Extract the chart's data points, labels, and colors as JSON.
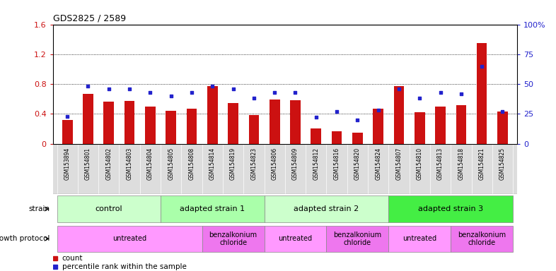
{
  "title": "GDS2825 / 2589",
  "samples": [
    "GSM153894",
    "GSM154801",
    "GSM154802",
    "GSM154803",
    "GSM154804",
    "GSM154805",
    "GSM154808",
    "GSM154814",
    "GSM154819",
    "GSM154823",
    "GSM154806",
    "GSM154809",
    "GSM154812",
    "GSM154816",
    "GSM154820",
    "GSM154824",
    "GSM154807",
    "GSM154810",
    "GSM154813",
    "GSM154818",
    "GSM154821",
    "GSM154825"
  ],
  "red_values": [
    0.32,
    0.67,
    0.56,
    0.57,
    0.5,
    0.44,
    0.47,
    0.77,
    0.54,
    0.38,
    0.59,
    0.58,
    0.2,
    0.17,
    0.15,
    0.47,
    0.77,
    0.42,
    0.5,
    0.52,
    1.35,
    0.43
  ],
  "blue_values": [
    23,
    48,
    46,
    46,
    43,
    40,
    43,
    48,
    46,
    38,
    43,
    43,
    22,
    27,
    20,
    28,
    46,
    38,
    43,
    42,
    65,
    27
  ],
  "left_ylim": [
    0,
    1.6
  ],
  "right_ylim": [
    0,
    100
  ],
  "left_yticks": [
    0,
    0.4,
    0.8,
    1.2,
    1.6
  ],
  "right_yticks": [
    0,
    25,
    50,
    75,
    100
  ],
  "right_yticklabels": [
    "0",
    "25",
    "50",
    "75",
    "100%"
  ],
  "red_color": "#cc1111",
  "blue_color": "#2222cc",
  "strain_groups": [
    {
      "label": "control",
      "start": 0,
      "end": 5,
      "color": "#ccffcc"
    },
    {
      "label": "adapted strain 1",
      "start": 5,
      "end": 10,
      "color": "#aaffaa"
    },
    {
      "label": "adapted strain 2",
      "start": 10,
      "end": 16,
      "color": "#ccffcc"
    },
    {
      "label": "adapted strain 3",
      "start": 16,
      "end": 22,
      "color": "#44ee44"
    }
  ],
  "protocol_groups": [
    {
      "label": "untreated",
      "start": 0,
      "end": 7,
      "color": "#ff99ff"
    },
    {
      "label": "benzalkonium\nchloride",
      "start": 7,
      "end": 10,
      "color": "#ee77ee"
    },
    {
      "label": "untreated",
      "start": 10,
      "end": 13,
      "color": "#ff99ff"
    },
    {
      "label": "benzalkonium\nchloride",
      "start": 13,
      "end": 16,
      "color": "#ee77ee"
    },
    {
      "label": "untreated",
      "start": 16,
      "end": 19,
      "color": "#ff99ff"
    },
    {
      "label": "benzalkonium\nchloride",
      "start": 19,
      "end": 22,
      "color": "#ee77ee"
    }
  ],
  "xtick_bg": "#dddddd",
  "legend_items": [
    {
      "color": "#cc1111",
      "label": "count"
    },
    {
      "color": "#2222cc",
      "label": "percentile rank within the sample"
    }
  ]
}
